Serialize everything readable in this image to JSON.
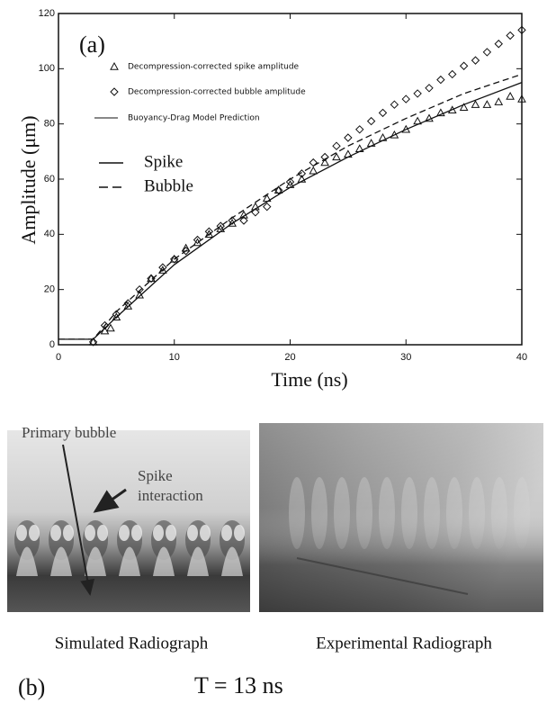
{
  "chart_data": {
    "type": "scatter",
    "annotation": "(a)",
    "x_label": "Time (ns)",
    "y_label": "Amplitude (μm)",
    "xlim": [
      0,
      40
    ],
    "xticks": [
      0,
      10,
      20,
      30,
      40
    ],
    "ylim": [
      0,
      120
    ],
    "yticks": [
      0,
      20,
      40,
      60,
      80,
      100,
      120
    ],
    "model_legend": "Buoyancy-Drag Model Prediction",
    "series": [
      {
        "name": "Decompression-corrected spike amplitude",
        "marker": "triangle",
        "color": "#111111",
        "x": [
          3,
          4,
          4.5,
          5,
          6,
          7,
          8,
          9,
          10,
          11,
          12,
          13,
          14,
          15,
          16,
          17,
          18,
          19,
          20,
          21,
          22,
          23,
          24,
          25,
          26,
          27,
          28,
          29,
          30,
          31,
          32,
          33,
          34,
          35,
          36,
          37,
          38,
          39,
          40
        ],
        "values": [
          1,
          5,
          6,
          10,
          14,
          18,
          24,
          27,
          31,
          35,
          37,
          40,
          42,
          44,
          47,
          50,
          53,
          56,
          58,
          60,
          63,
          66,
          68,
          69,
          71,
          73,
          75,
          76,
          78,
          81,
          82,
          84,
          85,
          86,
          87,
          87,
          88,
          90,
          89
        ]
      },
      {
        "name": "Decompression-corrected bubble amplitude",
        "marker": "diamond",
        "color": "#111111",
        "x": [
          3,
          4,
          5,
          6,
          7,
          8,
          9,
          10,
          11,
          12,
          13,
          14,
          15,
          16,
          17,
          18,
          19,
          20,
          21,
          22,
          23,
          24,
          25,
          26,
          27,
          28,
          29,
          30,
          31,
          32,
          33,
          34,
          35,
          36,
          37,
          38,
          39,
          40
        ],
        "values": [
          1,
          7,
          11,
          15,
          20,
          24,
          28,
          31,
          34,
          38,
          41,
          43,
          45,
          45,
          48,
          50,
          56,
          59,
          62,
          66,
          68,
          72,
          75,
          78,
          81,
          84,
          87,
          89,
          91,
          93,
          96,
          98,
          101,
          103,
          106,
          109,
          112,
          114
        ]
      },
      {
        "name": "Spike",
        "marker": "solid",
        "color": "#111111",
        "x": [
          0,
          3,
          5,
          10,
          15,
          20,
          25,
          30,
          35,
          40
        ],
        "values": [
          2,
          2,
          10,
          29,
          44,
          57,
          68,
          78,
          87,
          95
        ]
      },
      {
        "name": "Bubble",
        "marker": "dashed",
        "color": "#111111",
        "x": [
          0,
          3,
          5,
          10,
          15,
          20,
          25,
          30,
          35,
          40
        ],
        "values": [
          2,
          2,
          12,
          31,
          46,
          60,
          72,
          82,
          91,
          98
        ]
      }
    ]
  },
  "images": [
    {
      "caption": "Simulated Radiograph",
      "annotations": [
        "Primary bubble",
        "Spike",
        "interaction"
      ]
    },
    {
      "caption": "Experimental Radiograph"
    }
  ],
  "panel_label": "(b)",
  "time_label": "T = 13 ns"
}
